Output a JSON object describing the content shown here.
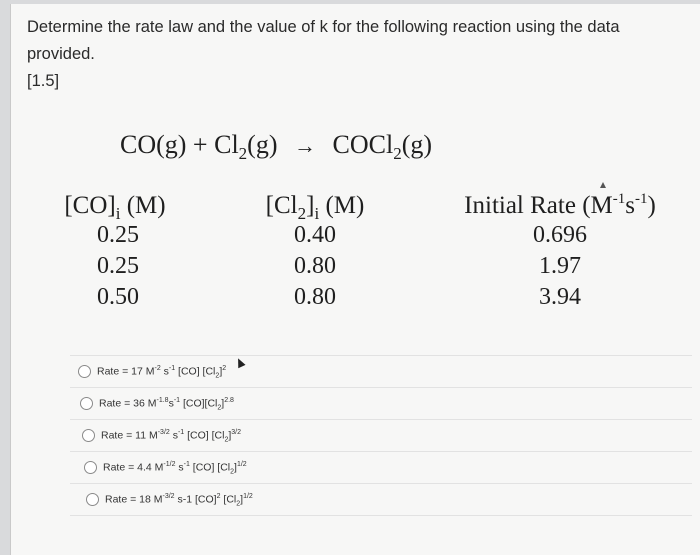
{
  "question": {
    "text": "Determine the rate law and the value of k for the following reaction using the data provided.",
    "points": "[1.5]"
  },
  "reaction": {
    "r1": "CO(g) + Cl",
    "r1_sub": "2",
    "r1_end": "(g)",
    "arrow": "→",
    "p1": "COCl",
    "p1_sub": "2",
    "p1_end": "(g)"
  },
  "table": {
    "col1_header": {
      "a": "[CO]",
      "sub": "i",
      "b": " (M)"
    },
    "col2_header": {
      "a": "[Cl",
      "sub1": "2",
      "b": "]",
      "sub2": "i",
      "c": " (M)"
    },
    "col3_header": {
      "a": "Initial Rate (M",
      "sup1": "-1",
      "b": "s",
      "sup2": "-1",
      "c": ")"
    },
    "co": [
      "0.25",
      "0.25",
      "0.50"
    ],
    "cl2": [
      "0.40",
      "0.80",
      "0.80"
    ],
    "rate": [
      "0.696",
      "1.97",
      "3.94"
    ]
  },
  "options": [
    {
      "html": "Rate = 17 M<sup>-2</sup> s<sup>-1</sup> [CO] [Cl<sub>2</sub>]<sup>2</sup>"
    },
    {
      "html": "Rate = 36 M<sup>-1.8</sup>s<sup>-1</sup> [CO][Cl<sub>2</sub>]<sup>2.8</sup>"
    },
    {
      "html": "Rate = 11 M<sup>-3/2</sup> s<sup>-1</sup> [CO] [Cl<sub>2</sub>]<sup>3/2</sup>"
    },
    {
      "html": "Rate = 4.4 M<sup>-1/2</sup> s<sup>-1</sup> [CO] [Cl<sub>2</sub>]<sup>1/2</sup>"
    },
    {
      "html": "Rate = 18 M<sup>-3/2</sup> s-1 [CO]<sup>2</sup> [Cl<sub>2</sub>]<sup>1/2</sup>"
    }
  ]
}
